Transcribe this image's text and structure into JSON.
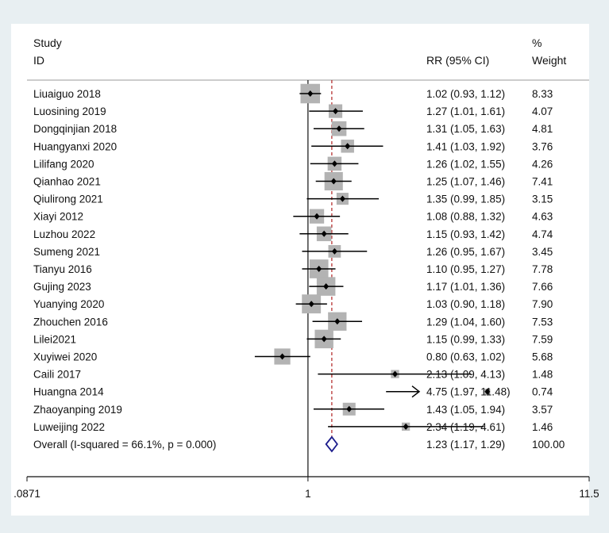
{
  "chart_data": {
    "type": "forest",
    "header": {
      "study_line1": "Study",
      "study_line2": "ID",
      "effect_col": "RR (95% CI)",
      "weight_line1": "%",
      "weight_line2": "Weight"
    },
    "studies": [
      {
        "id": "Liuaiguo 2018",
        "rr": 1.02,
        "lo": 0.93,
        "hi": 1.12,
        "ci_text": "1.02 (0.93, 1.12)",
        "weight": 8.33,
        "weight_text": "8.33"
      },
      {
        "id": "Luosining 2019",
        "rr": 1.27,
        "lo": 1.01,
        "hi": 1.61,
        "ci_text": "1.27 (1.01, 1.61)",
        "weight": 4.07,
        "weight_text": "4.07"
      },
      {
        "id": "Dongqinjian 2018",
        "rr": 1.31,
        "lo": 1.05,
        "hi": 1.63,
        "ci_text": "1.31 (1.05, 1.63)",
        "weight": 4.81,
        "weight_text": "4.81"
      },
      {
        "id": "Huangyanxi 2020",
        "rr": 1.41,
        "lo": 1.03,
        "hi": 1.92,
        "ci_text": "1.41 (1.03, 1.92)",
        "weight": 3.76,
        "weight_text": "3.76"
      },
      {
        "id": "Lilifang 2020",
        "rr": 1.26,
        "lo": 1.02,
        "hi": 1.55,
        "ci_text": "1.26 (1.02, 1.55)",
        "weight": 4.26,
        "weight_text": "4.26"
      },
      {
        "id": "Qianhao 2021",
        "rr": 1.25,
        "lo": 1.07,
        "hi": 1.46,
        "ci_text": "1.25 (1.07, 1.46)",
        "weight": 7.41,
        "weight_text": "7.41"
      },
      {
        "id": "Qiulirong 2021",
        "rr": 1.35,
        "lo": 0.99,
        "hi": 1.85,
        "ci_text": "1.35 (0.99, 1.85)",
        "weight": 3.15,
        "weight_text": "3.15"
      },
      {
        "id": "Xiayi 2012",
        "rr": 1.08,
        "lo": 0.88,
        "hi": 1.32,
        "ci_text": "1.08 (0.88, 1.32)",
        "weight": 4.63,
        "weight_text": "4.63"
      },
      {
        "id": "Luzhou 2022",
        "rr": 1.15,
        "lo": 0.93,
        "hi": 1.42,
        "ci_text": "1.15 (0.93, 1.42)",
        "weight": 4.74,
        "weight_text": "4.74"
      },
      {
        "id": "Sumeng 2021",
        "rr": 1.26,
        "lo": 0.95,
        "hi": 1.67,
        "ci_text": "1.26 (0.95, 1.67)",
        "weight": 3.45,
        "weight_text": "3.45"
      },
      {
        "id": "Tianyu 2016",
        "rr": 1.1,
        "lo": 0.95,
        "hi": 1.27,
        "ci_text": "1.10 (0.95, 1.27)",
        "weight": 7.78,
        "weight_text": "7.78"
      },
      {
        "id": "Gujing 2023",
        "rr": 1.17,
        "lo": 1.01,
        "hi": 1.36,
        "ci_text": "1.17 (1.01, 1.36)",
        "weight": 7.66,
        "weight_text": "7.66"
      },
      {
        "id": "Yuanying 2020",
        "rr": 1.03,
        "lo": 0.9,
        "hi": 1.18,
        "ci_text": "1.03 (0.90, 1.18)",
        "weight": 7.9,
        "weight_text": "7.90"
      },
      {
        "id": "Zhouchen 2016",
        "rr": 1.29,
        "lo": 1.04,
        "hi": 1.6,
        "ci_text": "1.29 (1.04, 1.60)",
        "weight": 7.53,
        "weight_text": "7.53"
      },
      {
        "id": "Lilei2021",
        "rr": 1.15,
        "lo": 0.99,
        "hi": 1.33,
        "ci_text": "1.15 (0.99, 1.33)",
        "weight": 7.59,
        "weight_text": "7.59"
      },
      {
        "id": "Xuyiwei 2020",
        "rr": 0.8,
        "lo": 0.63,
        "hi": 1.02,
        "ci_text": "0.80 (0.63, 1.02)",
        "weight": 5.68,
        "weight_text": "5.68"
      },
      {
        "id": "Caili 2017",
        "rr": 2.13,
        "lo": 1.09,
        "hi": 4.13,
        "ci_text": "2.13 (1.09, 4.13)",
        "weight": 1.48,
        "weight_text": "1.48"
      },
      {
        "id": "Huangna 2014",
        "rr": 4.75,
        "lo": 1.97,
        "hi": 11.48,
        "ci_text": "4.75 (1.97, 11.48)",
        "weight": 0.74,
        "weight_text": "0.74",
        "arrow_right": true
      },
      {
        "id": "Zhaoyanping 2019",
        "rr": 1.43,
        "lo": 1.05,
        "hi": 1.94,
        "ci_text": "1.43 (1.05, 1.94)",
        "weight": 3.57,
        "weight_text": "3.57"
      },
      {
        "id": "Luweijing 2022",
        "rr": 2.34,
        "lo": 1.19,
        "hi": 4.61,
        "ci_text": "2.34 (1.19, 4.61)",
        "weight": 1.46,
        "weight_text": "1.46"
      }
    ],
    "overall": {
      "label": "Overall  (I-squared = 66.1%, p = 0.000)",
      "rr": 1.23,
      "lo": 1.17,
      "hi": 1.29,
      "ci_text": "1.23 (1.17, 1.29)",
      "weight_text": "100.00"
    },
    "x_scale": "log",
    "xlim": [
      0.0871,
      11.5
    ],
    "x_ticks": [
      {
        "value": 0.0871,
        "label": ".0871"
      },
      {
        "value": 1,
        "label": "1"
      },
      {
        "value": 11.5,
        "label": "11.5"
      }
    ],
    "null_line": 1,
    "colors": {
      "page_bg": "#e8eff2",
      "plot_bg": "#ffffff",
      "box": "#b3b3b3",
      "point": "#000000",
      "ci_line": "#000000",
      "overall_diamond": "#1c1c8c",
      "overall_line": "#b22222"
    }
  }
}
